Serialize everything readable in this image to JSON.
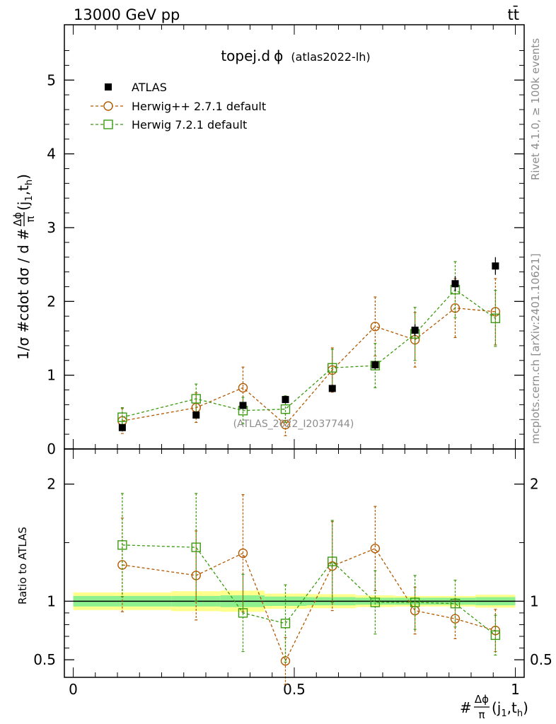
{
  "header": {
    "left": "13000 GeV pp",
    "right": "tt̄"
  },
  "main_title": {
    "prefix": "topej.d",
    "symbol": "ϕ",
    "suffix": "(atlas2022-lh)"
  },
  "ylabel": "1/σ #cdot dσ / d #Δϕ/π(j1,th)",
  "ylabel_parts": {
    "lead": "1/σ #cdot dσ / d #",
    "num": "Δϕ",
    "den": "π",
    "args": "(j",
    "sub1": "1",
    "comma": ",t",
    "sub2": "h",
    "close": ")"
  },
  "xlabel_parts": {
    "lead": "#",
    "num": "Δϕ",
    "den": "π",
    "args": "(j",
    "sub1": "1",
    "comma": ",t",
    "sub2": "h",
    "close": ")"
  },
  "ratio_ylabel": "Ratio to ATLAS",
  "watermark": "(ATLAS_2022_I2037744)",
  "side_text": {
    "top": "Rivet 4.1.0, ≥ 100k events",
    "bottom": "mcplots.cern.ch [arXiv:2401.10621]"
  },
  "legend": [
    {
      "label": "ATLAS",
      "color": "#000000",
      "marker": "filled-square"
    },
    {
      "label": "Herwig++ 2.7.1 default",
      "color": "#b35900",
      "marker": "open-circle"
    },
    {
      "label": "Herwig 7.2.1 default",
      "color": "#3a9a10",
      "marker": "open-square"
    }
  ],
  "colors": {
    "data": "#000000",
    "herwigpp": "#b35900",
    "herwig7": "#3a9a10",
    "band_inner": "#8ef08e",
    "band_outer": "#ffff8c"
  },
  "chart_data": {
    "type": "scatter",
    "xlim": [
      -0.02,
      1.02
    ],
    "main": {
      "ylim": [
        0,
        5.75
      ],
      "yticks": [
        "0",
        "1",
        "2",
        "3",
        "4",
        "5"
      ],
      "yticks_values": [
        0,
        1,
        2,
        3,
        4,
        5
      ],
      "series": [
        {
          "name": "ATLAS",
          "x": [
            0.111,
            0.278,
            0.384,
            0.48,
            0.586,
            0.683,
            0.773,
            0.864,
            0.955
          ],
          "y": [
            0.29,
            0.46,
            0.59,
            0.67,
            0.82,
            1.14,
            1.61,
            2.24,
            2.48
          ],
          "yerr": [
            0.03,
            0.04,
            0.04,
            0.05,
            0.05,
            0.06,
            0.08,
            0.1,
            0.12
          ]
        },
        {
          "name": "Herwig++ 2.7.1 default",
          "x": [
            0.111,
            0.278,
            0.384,
            0.48,
            0.586,
            0.683,
            0.773,
            0.864,
            0.955
          ],
          "y": [
            0.38,
            0.56,
            0.83,
            0.33,
            1.07,
            1.66,
            1.48,
            1.91,
            1.86
          ],
          "yerr": [
            0.17,
            0.2,
            0.28,
            0.15,
            0.3,
            0.4,
            0.37,
            0.4,
            0.45
          ]
        },
        {
          "name": "Herwig 7.2.1 default",
          "x": [
            0.111,
            0.278,
            0.384,
            0.48,
            0.586,
            0.683,
            0.773,
            0.864,
            0.955
          ],
          "y": [
            0.43,
            0.68,
            0.52,
            0.54,
            1.1,
            1.13,
            1.56,
            2.16,
            1.77
          ],
          "yerr": [
            0.13,
            0.2,
            0.18,
            0.18,
            0.25,
            0.3,
            0.36,
            0.38,
            0.38
          ]
        }
      ]
    },
    "ratio": {
      "ylim": [
        0.35,
        2.3
      ],
      "yticks": [
        "0.5",
        "1",
        "2"
      ],
      "yticks_values": [
        0.5,
        1,
        2
      ],
      "xticks": [
        "0",
        "0.5",
        "1"
      ],
      "xticks_values": [
        0,
        0.5,
        1
      ],
      "band_edges": [
        0.0,
        0.222,
        0.333,
        0.433,
        0.528,
        0.639,
        0.726,
        0.82,
        0.91,
        1.0
      ],
      "band_inner": [
        0.045,
        0.045,
        0.05,
        0.04,
        0.035,
        0.03,
        0.03,
        0.03,
        0.035
      ],
      "band_outer": [
        0.075,
        0.085,
        0.09,
        0.065,
        0.06,
        0.05,
        0.045,
        0.045,
        0.055
      ],
      "series": [
        {
          "name": "Herwig++ 2.7.1 default",
          "y": [
            1.31,
            1.22,
            1.41,
            0.49,
            1.3,
            1.45,
            0.92,
            0.85,
            0.75
          ],
          "yerr": [
            0.4,
            0.38,
            0.5,
            0.2,
            0.38,
            0.36,
            0.2,
            0.17,
            0.18
          ]
        },
        {
          "name": "Herwig 7.2.1 default",
          "y": [
            1.48,
            1.46,
            0.9,
            0.81,
            1.34,
            0.99,
            0.99,
            0.98,
            0.71
          ],
          "yerr": [
            0.44,
            0.46,
            0.33,
            0.33,
            0.35,
            0.27,
            0.23,
            0.2,
            0.17
          ]
        }
      ]
    }
  }
}
